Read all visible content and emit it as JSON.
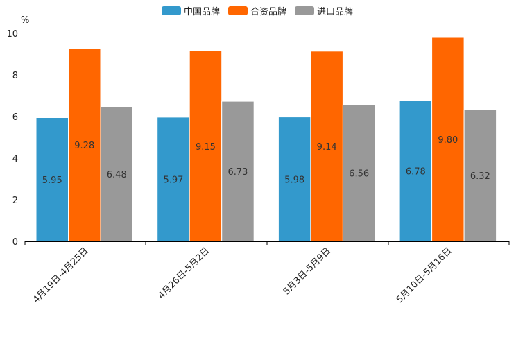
{
  "chart_data": {
    "type": "bar",
    "title": "",
    "xlabel": "",
    "ylabel": "%",
    "ylim": [
      0,
      10
    ],
    "yticks": [
      0,
      2,
      4,
      6,
      8,
      10
    ],
    "grid": false,
    "legend": "top-center",
    "categories": [
      "4月19日-4月25日",
      "4月26日-5月2日",
      "5月3日-5月9日",
      "5月10日-5月16日"
    ],
    "series": [
      {
        "name": "中国品牌",
        "color": "#3399cc",
        "values": [
          5.95,
          5.97,
          5.98,
          6.78
        ],
        "labels": [
          "5.95",
          "5.97",
          "5.98",
          "6.78"
        ]
      },
      {
        "name": "合资品牌",
        "color": "#ff6600",
        "values": [
          9.28,
          9.15,
          9.14,
          9.8
        ],
        "labels": [
          "9.28",
          "9.15",
          "9.14",
          "9.80"
        ]
      },
      {
        "name": "进口品牌",
        "color": "#999999",
        "values": [
          6.48,
          6.73,
          6.56,
          6.32
        ],
        "labels": [
          "6.48",
          "6.73",
          "6.56",
          "6.32"
        ]
      }
    ]
  }
}
